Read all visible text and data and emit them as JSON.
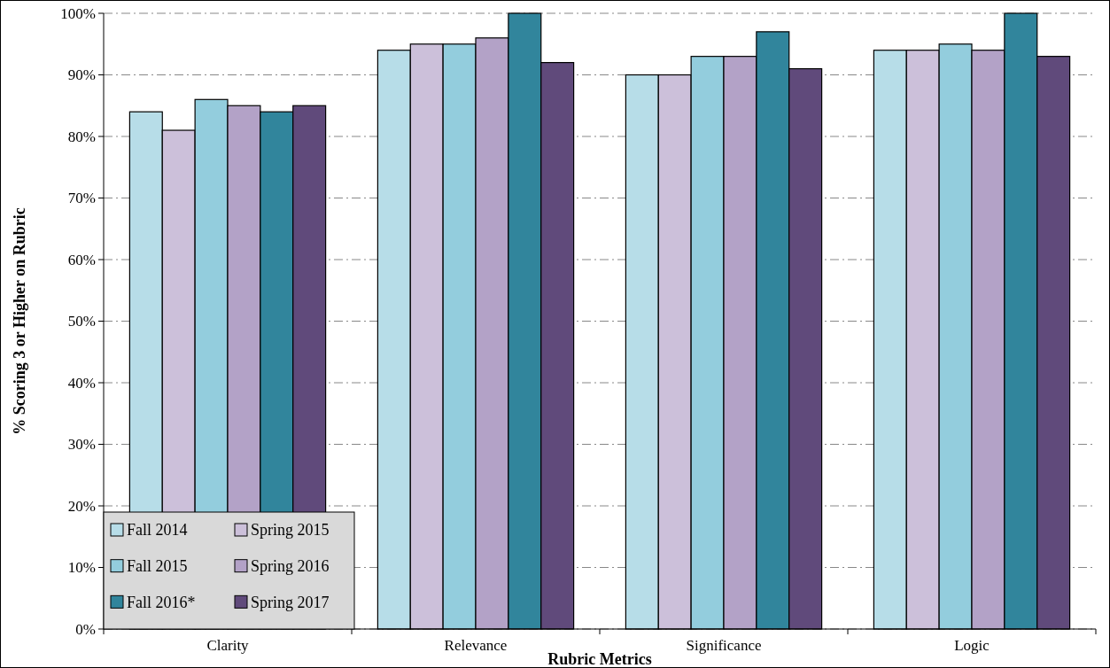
{
  "chart_data": {
    "type": "bar",
    "xlabel": "Rubric Metrics",
    "ylabel": "% Scoring 3 or Higher on Rubric",
    "categories": [
      "Clarity",
      "Relevance",
      "Significance",
      "Logic"
    ],
    "series": [
      {
        "name": "Fall 2014",
        "color": "#b7dde8",
        "values": [
          84,
          94,
          90,
          94
        ]
      },
      {
        "name": "Spring 2015",
        "color": "#ccc0da",
        "values": [
          81,
          95,
          90,
          94
        ]
      },
      {
        "name": "Fall 2015",
        "color": "#93cddd",
        "values": [
          86,
          95,
          93,
          95
        ]
      },
      {
        "name": "Spring 2016",
        "color": "#b3a2c7",
        "values": [
          85,
          96,
          93,
          94
        ]
      },
      {
        "name": "Fall 2016*",
        "color": "#31859c",
        "values": [
          84,
          100,
          97,
          100
        ]
      },
      {
        "name": "Spring 2017",
        "color": "#604a7b",
        "values": [
          85,
          92,
          91,
          93
        ]
      }
    ],
    "ylim": [
      0,
      100
    ],
    "yticks": [
      {
        "value": 0,
        "label": "0%"
      },
      {
        "value": 10,
        "label": "10%"
      },
      {
        "value": 20,
        "label": "20%"
      },
      {
        "value": 30,
        "label": "30%"
      },
      {
        "value": 40,
        "label": "40%"
      },
      {
        "value": 50,
        "label": "50%"
      },
      {
        "value": 60,
        "label": "60%"
      },
      {
        "value": 70,
        "label": "70%"
      },
      {
        "value": 80,
        "label": "80%"
      },
      {
        "value": 90,
        "label": "90%"
      },
      {
        "value": 100,
        "label": "100%"
      }
    ],
    "grid": "y",
    "legend": "bottom left"
  }
}
